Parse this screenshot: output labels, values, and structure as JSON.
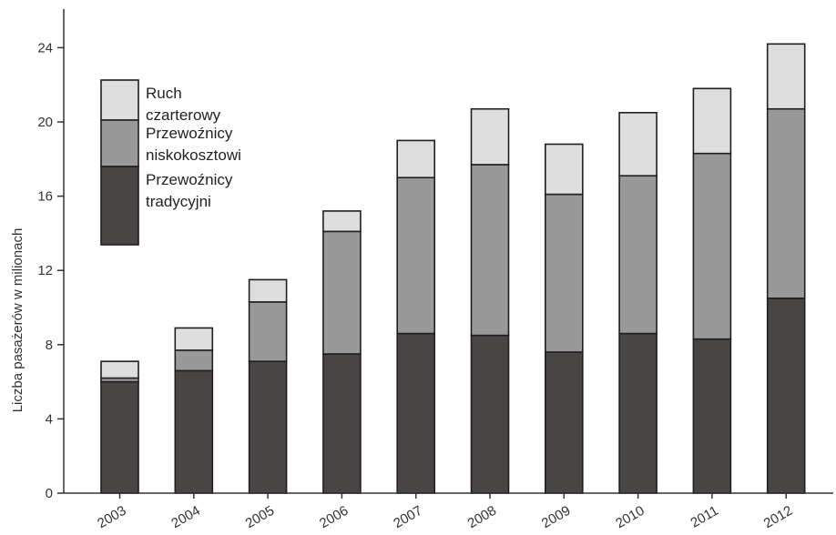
{
  "chart_data": {
    "type": "bar",
    "stacked": true,
    "categories": [
      "2003",
      "2004",
      "2005",
      "2006",
      "2007",
      "2008",
      "2009",
      "2010",
      "2011",
      "2012"
    ],
    "series": [
      {
        "name_lines": [
          "Przewoźnicy",
          "tradycyjni"
        ],
        "color": "#4a4545",
        "values": [
          6.0,
          6.6,
          7.1,
          7.5,
          8.6,
          8.5,
          7.6,
          8.6,
          8.3,
          10.5
        ]
      },
      {
        "name_lines": [
          "Przewoźnicy",
          "niskokosztowi"
        ],
        "color": "#999999",
        "values": [
          0.2,
          1.1,
          3.2,
          6.6,
          8.4,
          9.2,
          8.5,
          8.5,
          10.0,
          10.2
        ]
      },
      {
        "name_lines": [
          "Ruch",
          "czarterowy"
        ],
        "color": "#dedede",
        "values": [
          0.9,
          1.2,
          1.2,
          1.1,
          2.0,
          3.0,
          2.7,
          3.4,
          3.5,
          3.5
        ]
      }
    ],
    "ylabel": "Liczba pasażerów w milionach",
    "xlabel": "",
    "title": "",
    "ylim": [
      0,
      26
    ],
    "yticks": [
      "0",
      "4",
      "8",
      "12",
      "16",
      "20",
      "24"
    ],
    "grid": false,
    "legend_position": "top-left"
  }
}
